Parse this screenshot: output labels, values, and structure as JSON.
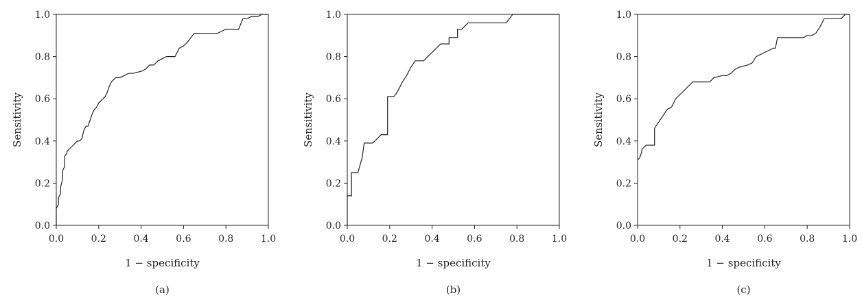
{
  "chart_data": [
    {
      "type": "line",
      "caption": "(a)",
      "xlabel": "1 − specificity",
      "ylabel": "Sensitivity",
      "xlim": [
        0,
        1
      ],
      "ylim": [
        0,
        1
      ],
      "x_ticks": [
        "0.0",
        "0.2",
        "0.4",
        "0.6",
        "0.8",
        "1.0"
      ],
      "y_ticks": [
        "0.0",
        "0.2",
        "0.4",
        "0.6",
        "0.8",
        "1.0"
      ],
      "grid": false,
      "color": "#231f20",
      "series": [
        {
          "x": [
            0,
            0,
            0.01,
            0.01,
            0.02,
            0.02,
            0.03,
            0.03,
            0.04,
            0.04,
            0.05,
            0.05,
            0.06,
            0.07,
            0.07,
            0.08,
            0.09,
            0.1,
            0.11,
            0.12,
            0.13,
            0.14,
            0.15,
            0.16,
            0.17,
            0.18,
            0.19,
            0.2,
            0.21,
            0.22,
            0.23,
            0.24,
            0.25,
            0.26,
            0.28,
            0.3,
            0.32,
            0.34,
            0.36,
            0.4,
            0.42,
            0.44,
            0.46,
            0.48,
            0.5,
            0.52,
            0.54,
            0.56,
            0.58,
            0.6,
            0.62,
            0.65,
            0.7,
            0.76,
            0.78,
            0.8,
            0.82,
            0.84,
            0.86,
            0.88,
            0.9,
            0.92,
            0.95,
            0.97,
            1.0
          ],
          "y": [
            0,
            0.08,
            0.1,
            0.13,
            0.15,
            0.18,
            0.22,
            0.26,
            0.28,
            0.33,
            0.34,
            0.35,
            0.36,
            0.37,
            0.37,
            0.38,
            0.39,
            0.4,
            0.4,
            0.41,
            0.45,
            0.47,
            0.47,
            0.5,
            0.53,
            0.55,
            0.56,
            0.58,
            0.59,
            0.6,
            0.61,
            0.63,
            0.66,
            0.68,
            0.7,
            0.7,
            0.71,
            0.72,
            0.72,
            0.73,
            0.74,
            0.76,
            0.76,
            0.78,
            0.79,
            0.8,
            0.8,
            0.8,
            0.84,
            0.85,
            0.87,
            0.91,
            0.91,
            0.91,
            0.92,
            0.93,
            0.93,
            0.93,
            0.93,
            0.98,
            0.98,
            0.99,
            0.99,
            1.0,
            1.0
          ]
        }
      ]
    },
    {
      "type": "line",
      "caption": "(b)",
      "xlabel": "1 − specificity",
      "ylabel": "Sensitivity",
      "xlim": [
        0,
        1
      ],
      "ylim": [
        0,
        1
      ],
      "x_ticks": [
        "0.0",
        "0.2",
        "0.4",
        "0.6",
        "0.8",
        "1.0"
      ],
      "y_ticks": [
        "0.0",
        "0.2",
        "0.4",
        "0.6",
        "0.8",
        "1.0"
      ],
      "grid": false,
      "color": "#231f20",
      "series": [
        {
          "x": [
            0,
            0,
            0.02,
            0.02,
            0.05,
            0.07,
            0.08,
            0.12,
            0.14,
            0.16,
            0.19,
            0.19,
            0.22,
            0.24,
            0.24,
            0.26,
            0.28,
            0.3,
            0.32,
            0.32,
            0.36,
            0.38,
            0.4,
            0.42,
            0.44,
            0.46,
            0.48,
            0.48,
            0.52,
            0.52,
            0.54,
            0.57,
            0.6,
            0.75,
            0.78,
            1.0
          ],
          "y": [
            0,
            0.14,
            0.14,
            0.25,
            0.25,
            0.32,
            0.39,
            0.39,
            0.41,
            0.43,
            0.43,
            0.61,
            0.61,
            0.64,
            0.64,
            0.68,
            0.71,
            0.75,
            0.78,
            0.78,
            0.78,
            0.8,
            0.82,
            0.84,
            0.86,
            0.86,
            0.86,
            0.89,
            0.89,
            0.93,
            0.93,
            0.96,
            0.96,
            0.96,
            1.0,
            1.0
          ]
        }
      ]
    },
    {
      "type": "line",
      "caption": "(c)",
      "xlabel": "1 − specificity",
      "ylabel": "Sensitivity",
      "xlim": [
        0,
        1
      ],
      "ylim": [
        0,
        1
      ],
      "x_ticks": [
        "0.0",
        "0.2",
        "0.4",
        "0.6",
        "0.8",
        "1.0"
      ],
      "y_ticks": [
        "0.0",
        "0.2",
        "0.4",
        "0.6",
        "0.8",
        "1.0"
      ],
      "grid": false,
      "color": "#231f20",
      "series": [
        {
          "x": [
            0,
            0.01,
            0.02,
            0.02,
            0.04,
            0.08,
            0.08,
            0.1,
            0.12,
            0.14,
            0.16,
            0.18,
            0.2,
            0.22,
            0.24,
            0.26,
            0.3,
            0.34,
            0.36,
            0.4,
            0.42,
            0.44,
            0.46,
            0.48,
            0.52,
            0.54,
            0.56,
            0.6,
            0.64,
            0.65,
            0.66,
            0.7,
            0.76,
            0.78,
            0.8,
            0.82,
            0.84,
            0.86,
            0.88,
            0.92,
            0.96,
            0.98,
            1.0
          ],
          "y": [
            0.31,
            0.32,
            0.35,
            0.36,
            0.38,
            0.38,
            0.46,
            0.49,
            0.52,
            0.55,
            0.56,
            0.6,
            0.62,
            0.64,
            0.66,
            0.68,
            0.68,
            0.68,
            0.7,
            0.71,
            0.71,
            0.72,
            0.74,
            0.75,
            0.76,
            0.77,
            0.8,
            0.82,
            0.84,
            0.84,
            0.89,
            0.89,
            0.89,
            0.89,
            0.9,
            0.9,
            0.91,
            0.94,
            0.98,
            0.98,
            0.98,
            1.0,
            1.0
          ]
        }
      ]
    }
  ]
}
